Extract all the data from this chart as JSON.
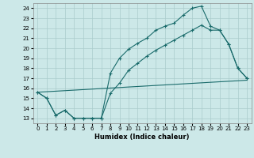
{
  "xlabel": "Humidex (Indice chaleur)",
  "ylabel": "",
  "bg_color": "#cce8e8",
  "grid_color": "#aacccc",
  "line_color": "#1a6b6b",
  "xlim": [
    -0.5,
    23.5
  ],
  "ylim": [
    12.5,
    24.5
  ],
  "xticks": [
    0,
    1,
    2,
    3,
    4,
    5,
    6,
    7,
    8,
    9,
    10,
    11,
    12,
    13,
    14,
    15,
    16,
    17,
    18,
    19,
    20,
    21,
    22,
    23
  ],
  "yticks": [
    13,
    14,
    15,
    16,
    17,
    18,
    19,
    20,
    21,
    22,
    23,
    24
  ],
  "line1_x": [
    0,
    1,
    2,
    3,
    4,
    5,
    6,
    7,
    8,
    9,
    10,
    11,
    12,
    13,
    14,
    15,
    16,
    17,
    18,
    19,
    20,
    21,
    22,
    23
  ],
  "line1_y": [
    15.6,
    15.0,
    13.3,
    13.8,
    13.0,
    13.0,
    13.0,
    13.0,
    17.5,
    19.0,
    19.9,
    20.5,
    21.0,
    21.8,
    22.2,
    22.5,
    23.3,
    24.0,
    24.2,
    22.2,
    21.8,
    20.4,
    18.0,
    17.0
  ],
  "line2_x": [
    0,
    1,
    2,
    3,
    4,
    5,
    6,
    7,
    8,
    9,
    10,
    11,
    12,
    13,
    14,
    15,
    16,
    17,
    18,
    19,
    20,
    21,
    22,
    23
  ],
  "line2_y": [
    15.6,
    15.0,
    13.3,
    13.8,
    13.0,
    13.0,
    13.0,
    13.0,
    15.5,
    16.5,
    17.8,
    18.5,
    19.2,
    19.8,
    20.3,
    20.8,
    21.3,
    21.8,
    22.3,
    21.8,
    21.8,
    20.4,
    18.0,
    17.0
  ],
  "line3_x": [
    0,
    23
  ],
  "line3_y": [
    15.6,
    16.8
  ]
}
